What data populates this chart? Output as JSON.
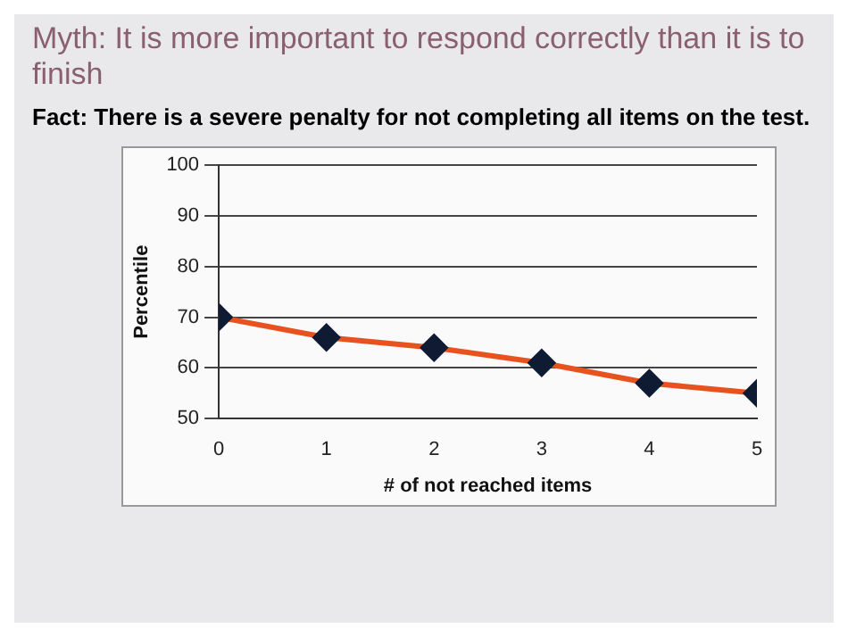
{
  "chart_data": {
    "type": "line",
    "title": "Myth: It is more important to respond correctly than it is to finish",
    "subtitle": "Fact: There is a severe penalty for not completing all items on the test.",
    "xlabel": "# of not reached items",
    "ylabel": "Percentile",
    "x": [
      0,
      1,
      2,
      3,
      4,
      5
    ],
    "series": [
      {
        "color": "#e8521e",
        "values": [
          70,
          66,
          64,
          61,
          57,
          55
        ]
      }
    ],
    "xlim": [
      0,
      5
    ],
    "xticks": [
      0,
      1,
      2,
      3,
      4,
      5
    ],
    "ylim": [
      50,
      100
    ],
    "yticks": [
      50,
      60,
      70,
      80,
      90,
      100
    ],
    "grid": "y",
    "marker": "diamond",
    "line_style": "solid",
    "legend": false
  }
}
